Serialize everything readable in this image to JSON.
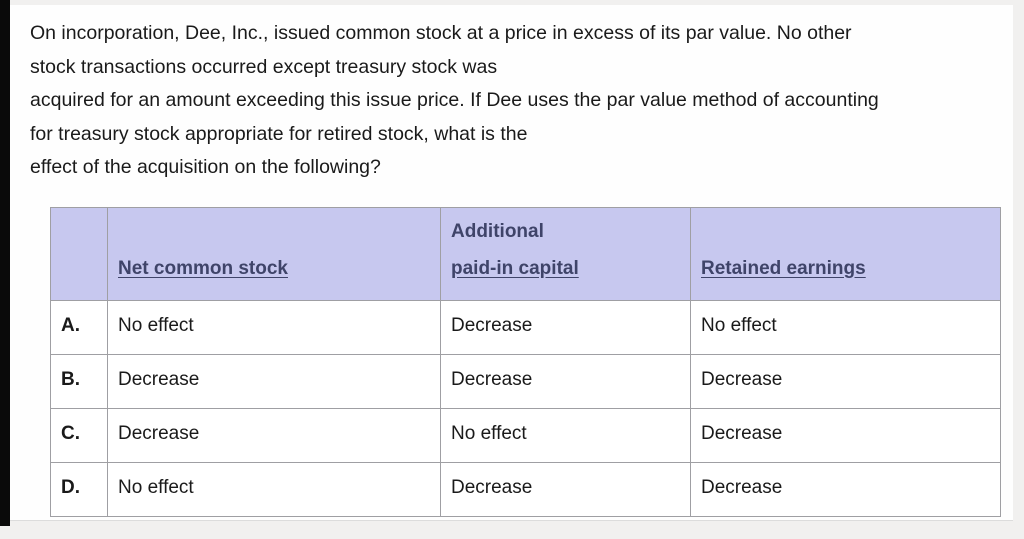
{
  "question": {
    "text": "On incorporation, Dee, Inc., issued common stock at a price in excess of its par value. No other\nstock transactions occurred except treasury stock was\nacquired for an amount exceeding this issue price. If Dee uses the par value method of accounting\nfor treasury stock appropriate for retired stock, what is the\neffect of the acquisition on the following?"
  },
  "table": {
    "headers": [
      {
        "line1": "",
        "line2": "Net common stock"
      },
      {
        "line1": "Additional",
        "line2": "paid-in capital"
      },
      {
        "line1": "",
        "line2": "Retained earnings"
      }
    ],
    "rows": [
      {
        "letter": "A.",
        "net_common_stock": "No effect",
        "additional_paid_in_capital": "Decrease",
        "retained_earnings": "No effect"
      },
      {
        "letter": "B.",
        "net_common_stock": "Decrease",
        "additional_paid_in_capital": "Decrease",
        "retained_earnings": "Decrease"
      },
      {
        "letter": "C.",
        "net_common_stock": "Decrease",
        "additional_paid_in_capital": "No effect",
        "retained_earnings": "Decrease"
      },
      {
        "letter": "D.",
        "net_common_stock": "No effect",
        "additional_paid_in_capital": "Decrease",
        "retained_earnings": "Decrease"
      }
    ]
  },
  "colors": {
    "page_bg": "#f1f0ef",
    "card_bg": "#fefefe",
    "bar": "#0a0a0a",
    "header_bg": "#c7c8ef",
    "header_text": "#3f4469",
    "border": "#9f9fa3",
    "body_text": "#1a1a1a"
  }
}
